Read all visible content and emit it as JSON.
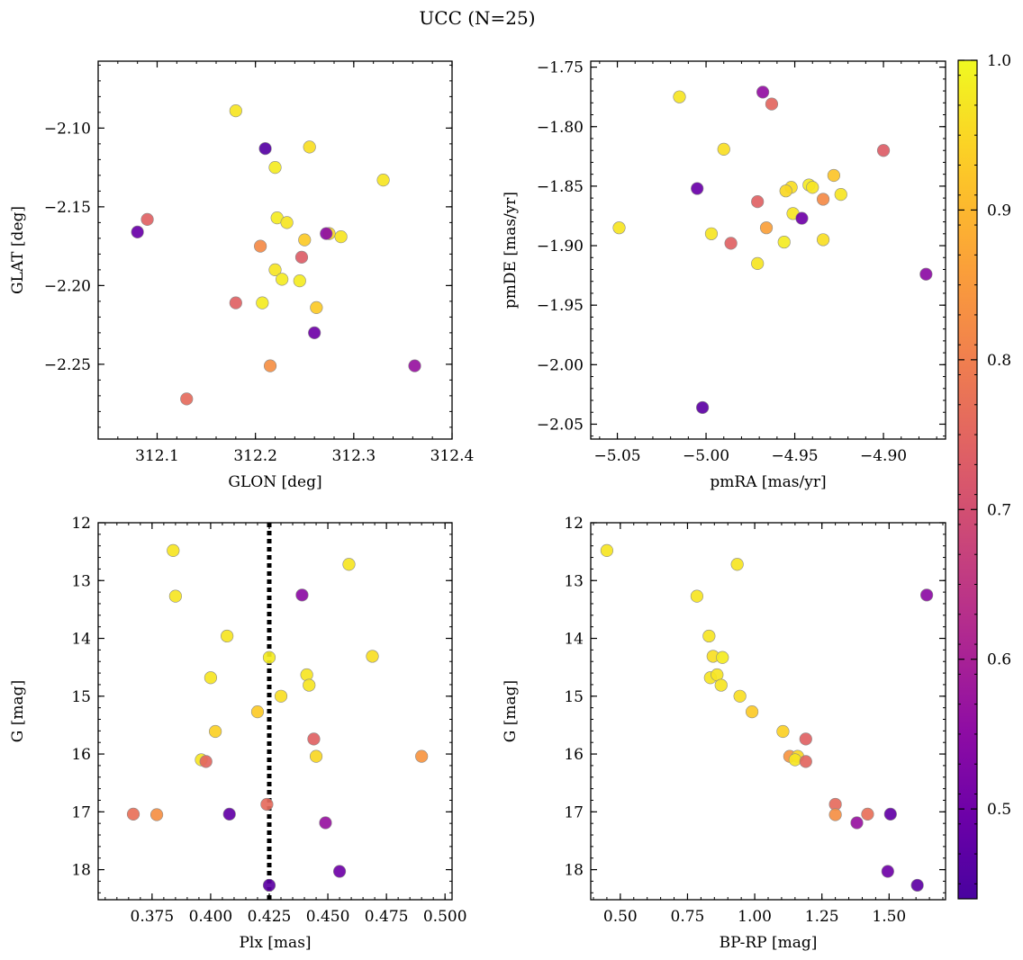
{
  "figure": {
    "title": "UCC (N=25)",
    "colorbar": {
      "colormap": "plasma",
      "range": [
        0.44,
        1.0
      ],
      "ticks": [
        0.5,
        0.6,
        0.7,
        0.8,
        0.9,
        1.0
      ],
      "tick_labels": [
        "0.5",
        "0.6",
        "0.7",
        "0.8",
        "0.9",
        "1.0"
      ]
    },
    "marker_edge_color": "#8a8a8a"
  },
  "chart_data": [
    {
      "type": "scatter",
      "xlabel": "GLON [deg]",
      "ylabel": "GLAT [deg]",
      "xlim": [
        312.04,
        312.4
      ],
      "ylim": [
        -2.2975,
        -2.0575
      ],
      "x_ticks": [
        312.1,
        312.2,
        312.3,
        312.4
      ],
      "x_tick_labels": [
        "312.1",
        "312.2",
        "312.3",
        "312.4"
      ],
      "y_ticks": [
        -2.1,
        -2.15,
        -2.2,
        -2.25
      ],
      "y_tick_labels": [
        "−2.10",
        "−2.15",
        "−2.20",
        "−2.25"
      ],
      "x_minor_step": 0.02,
      "y_minor_step": 0.01,
      "points": [
        {
          "x": 312.18,
          "y": -2.089,
          "c": 0.97
        },
        {
          "x": 312.21,
          "y": -2.113,
          "c": 0.46
        },
        {
          "x": 312.22,
          "y": -2.125,
          "c": 0.98
        },
        {
          "x": 312.255,
          "y": -2.112,
          "c": 0.96
        },
        {
          "x": 312.33,
          "y": -2.133,
          "c": 0.97
        },
        {
          "x": 312.09,
          "y": -2.158,
          "c": 0.74
        },
        {
          "x": 312.08,
          "y": -2.166,
          "c": 0.49
        },
        {
          "x": 312.222,
          "y": -2.157,
          "c": 0.98
        },
        {
          "x": 312.232,
          "y": -2.16,
          "c": 0.97
        },
        {
          "x": 312.205,
          "y": -2.175,
          "c": 0.82
        },
        {
          "x": 312.25,
          "y": -2.171,
          "c": 0.93
        },
        {
          "x": 312.275,
          "y": -2.167,
          "c": 0.95
        },
        {
          "x": 312.272,
          "y": -2.167,
          "c": 0.55
        },
        {
          "x": 312.287,
          "y": -2.169,
          "c": 0.97
        },
        {
          "x": 312.247,
          "y": -2.182,
          "c": 0.73
        },
        {
          "x": 312.22,
          "y": -2.19,
          "c": 0.97
        },
        {
          "x": 312.227,
          "y": -2.196,
          "c": 0.98
        },
        {
          "x": 312.245,
          "y": -2.197,
          "c": 0.98
        },
        {
          "x": 312.18,
          "y": -2.211,
          "c": 0.74
        },
        {
          "x": 312.207,
          "y": -2.211,
          "c": 0.98
        },
        {
          "x": 312.262,
          "y": -2.214,
          "c": 0.93
        },
        {
          "x": 312.26,
          "y": -2.23,
          "c": 0.5
        },
        {
          "x": 312.215,
          "y": -2.251,
          "c": 0.83
        },
        {
          "x": 312.362,
          "y": -2.251,
          "c": 0.57
        },
        {
          "x": 312.13,
          "y": -2.272,
          "c": 0.76
        }
      ]
    },
    {
      "type": "scatter",
      "xlabel": "pmRA [mas/yr]",
      "ylabel": "pmDE [mas/yr]",
      "xlim": [
        -5.065,
        -4.865
      ],
      "ylim": [
        -2.0625,
        -1.745
      ],
      "x_ticks": [
        -5.05,
        -5.0,
        -4.95,
        -4.9
      ],
      "x_tick_labels": [
        "−5.05",
        "−5.00",
        "−4.95",
        "−4.90"
      ],
      "y_ticks": [
        -1.75,
        -1.8,
        -1.85,
        -1.9,
        -1.95,
        -2.0,
        -2.05
      ],
      "y_tick_labels": [
        "−1.75",
        "−1.80",
        "−1.85",
        "−1.90",
        "−1.95",
        "−2.00",
        "−2.05"
      ],
      "x_minor_step": 0.01,
      "y_minor_step": 0.01,
      "points": [
        {
          "x": -5.015,
          "y": -1.775,
          "c": 0.97
        },
        {
          "x": -4.968,
          "y": -1.771,
          "c": 0.56
        },
        {
          "x": -4.963,
          "y": -1.781,
          "c": 0.75
        },
        {
          "x": -4.99,
          "y": -1.819,
          "c": 0.96
        },
        {
          "x": -4.9,
          "y": -1.82,
          "c": 0.73
        },
        {
          "x": -4.928,
          "y": -1.841,
          "c": 0.92
        },
        {
          "x": -5.005,
          "y": -1.852,
          "c": 0.49
        },
        {
          "x": -4.952,
          "y": -1.851,
          "c": 0.96
        },
        {
          "x": -4.955,
          "y": -1.854,
          "c": 0.95
        },
        {
          "x": -4.942,
          "y": -1.849,
          "c": 0.98
        },
        {
          "x": -4.94,
          "y": -1.851,
          "c": 0.97
        },
        {
          "x": -4.924,
          "y": -1.857,
          "c": 0.97
        },
        {
          "x": -4.971,
          "y": -1.863,
          "c": 0.74
        },
        {
          "x": -4.934,
          "y": -1.861,
          "c": 0.82
        },
        {
          "x": -4.951,
          "y": -1.873,
          "c": 0.97
        },
        {
          "x": -4.946,
          "y": -1.877,
          "c": 0.5
        },
        {
          "x": -4.966,
          "y": -1.885,
          "c": 0.86
        },
        {
          "x": -5.049,
          "y": -1.885,
          "c": 0.97
        },
        {
          "x": -4.997,
          "y": -1.89,
          "c": 0.97
        },
        {
          "x": -4.986,
          "y": -1.898,
          "c": 0.74
        },
        {
          "x": -4.956,
          "y": -1.897,
          "c": 0.98
        },
        {
          "x": -4.934,
          "y": -1.895,
          "c": 0.96
        },
        {
          "x": -4.971,
          "y": -1.915,
          "c": 0.97
        },
        {
          "x": -4.876,
          "y": -1.924,
          "c": 0.55
        },
        {
          "x": -5.002,
          "y": -2.036,
          "c": 0.47
        }
      ]
    },
    {
      "type": "scatter",
      "xlabel": "Plx [mas]",
      "ylabel": "G [mag]",
      "xlim": [
        0.352,
        0.503
      ],
      "ylim": [
        18.52,
        12.0
      ],
      "x_ticks": [
        0.375,
        0.4,
        0.425,
        0.45,
        0.475,
        0.5
      ],
      "x_tick_labels": [
        "0.375",
        "0.400",
        "0.425",
        "0.450",
        "0.475",
        "0.500"
      ],
      "y_ticks": [
        12,
        13,
        14,
        15,
        16,
        17,
        18
      ],
      "y_tick_labels": [
        "12",
        "13",
        "14",
        "15",
        "16",
        "17",
        "18"
      ],
      "x_minor_step": 0.005,
      "y_minor_step": 0.2,
      "vline": {
        "x": 0.425,
        "style": "dotted"
      },
      "points": [
        {
          "x": 0.384,
          "y": 12.48,
          "c": 0.97
        },
        {
          "x": 0.459,
          "y": 12.72,
          "c": 0.97
        },
        {
          "x": 0.385,
          "y": 13.27,
          "c": 0.97
        },
        {
          "x": 0.439,
          "y": 13.25,
          "c": 0.55
        },
        {
          "x": 0.407,
          "y": 13.96,
          "c": 0.97
        },
        {
          "x": 0.425,
          "y": 14.33,
          "c": 0.98
        },
        {
          "x": 0.469,
          "y": 14.31,
          "c": 0.96
        },
        {
          "x": 0.4,
          "y": 14.68,
          "c": 0.97
        },
        {
          "x": 0.441,
          "y": 14.63,
          "c": 0.97
        },
        {
          "x": 0.442,
          "y": 14.81,
          "c": 0.97
        },
        {
          "x": 0.43,
          "y": 15.0,
          "c": 0.96
        },
        {
          "x": 0.42,
          "y": 15.27,
          "c": 0.93
        },
        {
          "x": 0.402,
          "y": 15.61,
          "c": 0.94
        },
        {
          "x": 0.444,
          "y": 15.74,
          "c": 0.74
        },
        {
          "x": 0.396,
          "y": 16.1,
          "c": 0.97
        },
        {
          "x": 0.398,
          "y": 16.13,
          "c": 0.75
        },
        {
          "x": 0.445,
          "y": 16.04,
          "c": 0.95
        },
        {
          "x": 0.49,
          "y": 16.04,
          "c": 0.84
        },
        {
          "x": 0.424,
          "y": 16.87,
          "c": 0.76
        },
        {
          "x": 0.367,
          "y": 17.04,
          "c": 0.77
        },
        {
          "x": 0.377,
          "y": 17.05,
          "c": 0.83
        },
        {
          "x": 0.408,
          "y": 17.04,
          "c": 0.48
        },
        {
          "x": 0.449,
          "y": 17.19,
          "c": 0.57
        },
        {
          "x": 0.455,
          "y": 18.03,
          "c": 0.5
        },
        {
          "x": 0.425,
          "y": 18.27,
          "c": 0.47
        }
      ]
    },
    {
      "type": "scatter",
      "xlabel": "BP-RP [mag]",
      "ylabel": "G [mag]",
      "xlim": [
        0.39,
        1.71
      ],
      "ylim": [
        18.52,
        12.0
      ],
      "x_ticks": [
        0.5,
        0.75,
        1.0,
        1.25,
        1.5
      ],
      "x_tick_labels": [
        "0.50",
        "0.75",
        "1.00",
        "1.25",
        "1.50"
      ],
      "y_ticks": [
        12,
        13,
        14,
        15,
        16,
        17,
        18
      ],
      "y_tick_labels": [
        "12",
        "13",
        "14",
        "15",
        "16",
        "17",
        "18"
      ],
      "x_minor_step": 0.05,
      "y_minor_step": 0.2,
      "points": [
        {
          "x": 0.45,
          "y": 12.48,
          "c": 0.97
        },
        {
          "x": 0.935,
          "y": 12.72,
          "c": 0.97
        },
        {
          "x": 0.785,
          "y": 13.27,
          "c": 0.97
        },
        {
          "x": 1.64,
          "y": 13.25,
          "c": 0.55
        },
        {
          "x": 0.83,
          "y": 13.96,
          "c": 0.97
        },
        {
          "x": 0.845,
          "y": 14.31,
          "c": 0.96
        },
        {
          "x": 0.88,
          "y": 14.33,
          "c": 0.98
        },
        {
          "x": 0.835,
          "y": 14.68,
          "c": 0.97
        },
        {
          "x": 0.86,
          "y": 14.63,
          "c": 0.97
        },
        {
          "x": 0.875,
          "y": 14.81,
          "c": 0.97
        },
        {
          "x": 0.945,
          "y": 15.0,
          "c": 0.96
        },
        {
          "x": 0.99,
          "y": 15.27,
          "c": 0.93
        },
        {
          "x": 1.105,
          "y": 15.61,
          "c": 0.94
        },
        {
          "x": 1.19,
          "y": 15.74,
          "c": 0.74
        },
        {
          "x": 1.13,
          "y": 16.04,
          "c": 0.84
        },
        {
          "x": 1.16,
          "y": 16.04,
          "c": 0.95
        },
        {
          "x": 1.15,
          "y": 16.1,
          "c": 0.97
        },
        {
          "x": 1.19,
          "y": 16.13,
          "c": 0.75
        },
        {
          "x": 1.3,
          "y": 16.87,
          "c": 0.76
        },
        {
          "x": 1.3,
          "y": 17.05,
          "c": 0.83
        },
        {
          "x": 1.42,
          "y": 17.04,
          "c": 0.77
        },
        {
          "x": 1.505,
          "y": 17.04,
          "c": 0.48
        },
        {
          "x": 1.38,
          "y": 17.19,
          "c": 0.57
        },
        {
          "x": 1.495,
          "y": 18.03,
          "c": 0.5
        },
        {
          "x": 1.605,
          "y": 18.27,
          "c": 0.47
        }
      ]
    }
  ]
}
